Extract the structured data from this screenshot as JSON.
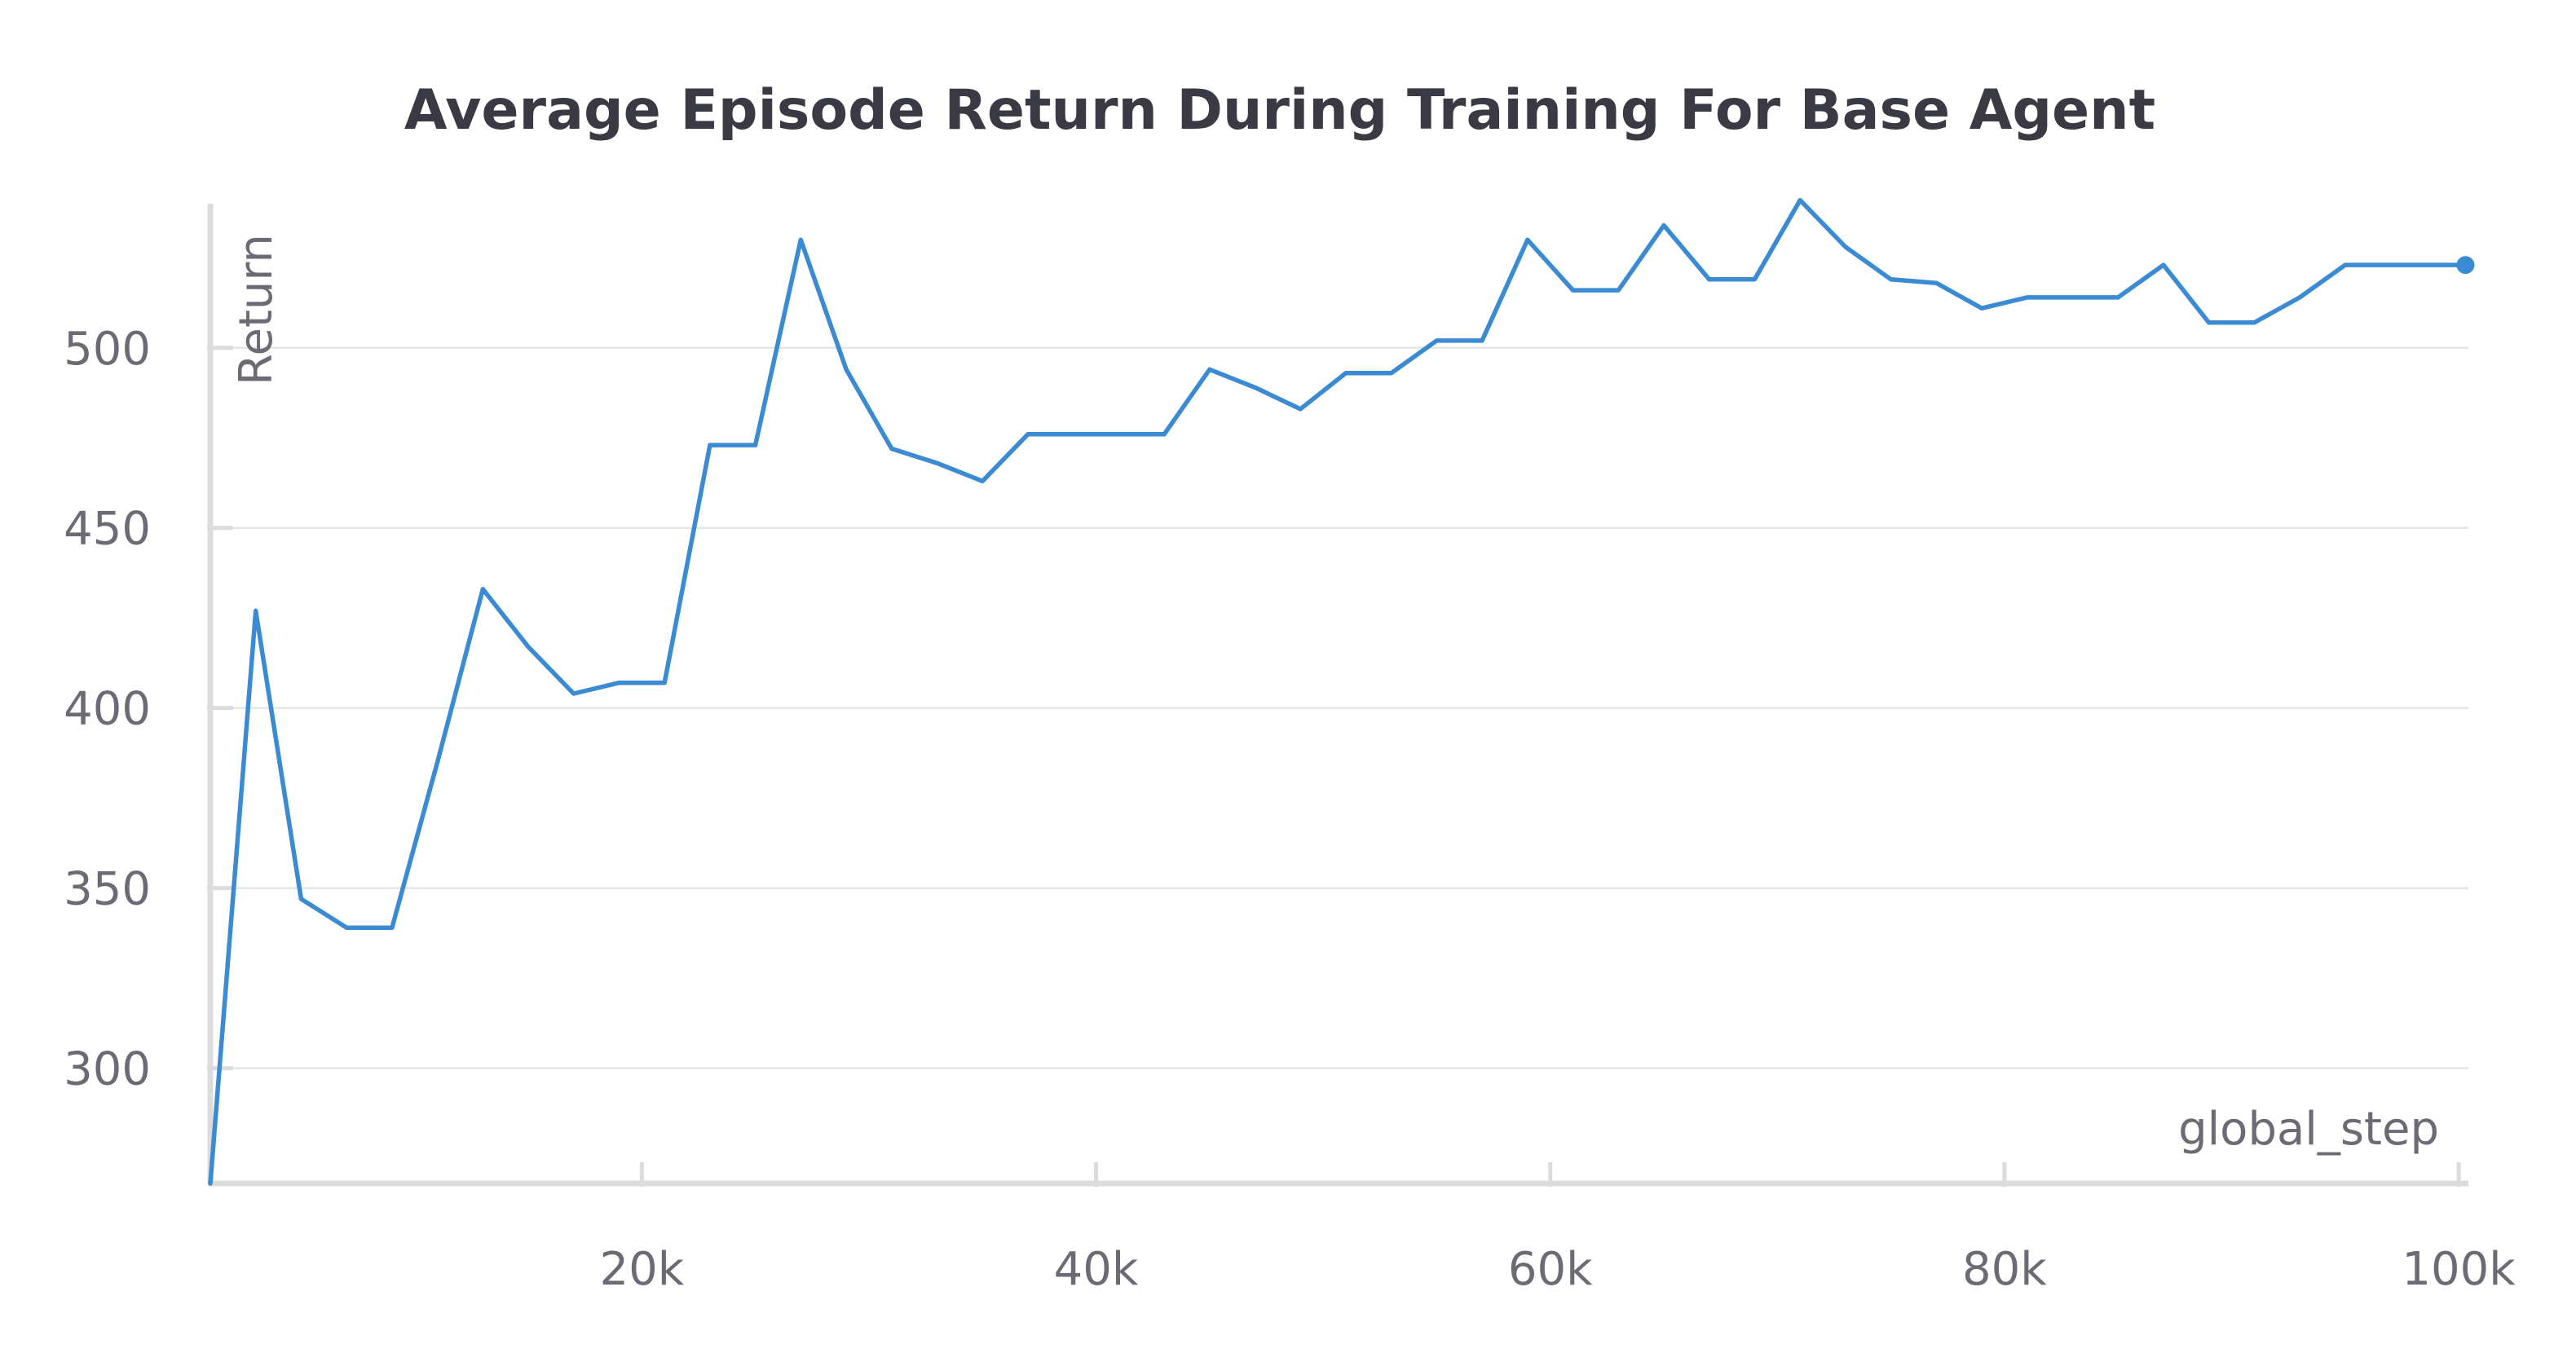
{
  "chart_data": {
    "type": "line",
    "title": "Average Episode Return During Training For Base Agent",
    "xlabel": "global_step",
    "ylabel": "Return",
    "xlim": [
      1000,
      100500
    ],
    "ylim": [
      268,
      540
    ],
    "grid": true,
    "x_ticks": [
      20000,
      40000,
      60000,
      80000,
      100000
    ],
    "x_tick_labels": [
      "20k",
      "40k",
      "60k",
      "80k",
      "100k"
    ],
    "y_ticks": [
      300,
      350,
      400,
      450,
      500
    ],
    "y_tick_labels": [
      "300",
      "350",
      "400",
      "450",
      "500"
    ],
    "series": [
      {
        "name": "Return",
        "color": "#3b8bd4",
        "x": [
          1000,
          3000,
          5000,
          7000,
          9000,
          11000,
          13000,
          15000,
          17000,
          19000,
          21000,
          23000,
          25000,
          27000,
          29000,
          31000,
          33000,
          35000,
          37000,
          39000,
          41000,
          43000,
          45000,
          47000,
          49000,
          51000,
          53000,
          55000,
          57000,
          59000,
          61000,
          63000,
          65000,
          67000,
          69000,
          71000,
          73000,
          75000,
          77000,
          79000,
          81000,
          83000,
          85000,
          87000,
          89000,
          91000,
          93000,
          95000,
          97000,
          99000,
          100300
        ],
        "values": [
          268,
          427,
          347,
          339,
          339,
          385,
          433,
          417,
          404,
          407,
          407,
          473,
          473,
          530,
          494,
          472,
          468,
          463,
          476,
          476,
          476,
          476,
          494,
          489,
          483,
          493,
          493,
          502,
          502,
          530,
          516,
          516,
          534,
          519,
          519,
          541,
          528,
          519,
          518,
          511,
          514,
          514,
          514,
          523,
          507,
          507,
          514,
          523,
          523,
          523,
          523
        ]
      }
    ]
  }
}
